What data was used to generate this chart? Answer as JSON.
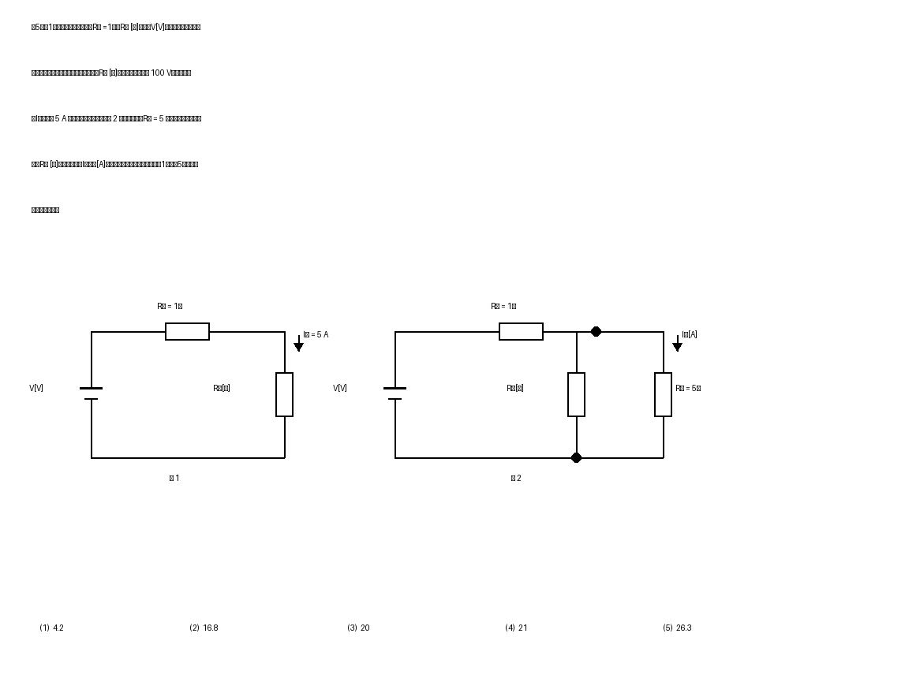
{
  "bg_color": "#ffffff",
  "line_color": "#000000",
  "line_width": 1.8,
  "fig1_label": "図 1",
  "fig2_label": "図 2",
  "text_lines": [
    "問5　図1のように，二つの抗抗",
    "回路がある。この回路において，抗抗",
    "流",
    "抗抗",
    "から一つ選べ。"
  ],
  "answer_choices": [
    "(1)  4.2",
    "(2)  16.8",
    "(3)  20",
    "(4)  21",
    "(5)  26.3"
  ]
}
